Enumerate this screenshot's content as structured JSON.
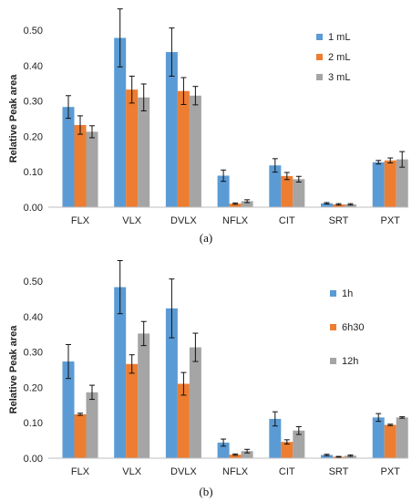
{
  "chart_data": [
    {
      "type": "bar",
      "panel_label": "(a)",
      "ylabel": "Relative Peak area",
      "ylim": [
        0,
        0.5
      ],
      "yticks": [
        "0.00",
        "0.10",
        "0.20",
        "0.30",
        "0.40",
        "0.50"
      ],
      "categories": [
        "FLX",
        "VLX",
        "DVLX",
        "NFLX",
        "CIT",
        "SRT",
        "PXT"
      ],
      "legend_position": "right",
      "series": [
        {
          "name": "1 mL",
          "color": "#5B9BD5",
          "values": [
            0.283,
            0.478,
            0.438,
            0.089,
            0.118,
            0.011,
            0.127
          ],
          "errors": [
            0.032,
            0.082,
            0.068,
            0.016,
            0.019,
            0.002,
            0.005
          ]
        },
        {
          "name": "2 mL",
          "color": "#ED7D31",
          "values": [
            0.232,
            0.332,
            0.328,
            0.01,
            0.088,
            0.008,
            0.132
          ],
          "errors": [
            0.026,
            0.038,
            0.038,
            0.002,
            0.01,
            0.002,
            0.007
          ]
        },
        {
          "name": "3 mL",
          "color": "#A5A5A5",
          "values": [
            0.213,
            0.31,
            0.315,
            0.017,
            0.079,
            0.008,
            0.135
          ],
          "errors": [
            0.017,
            0.038,
            0.026,
            0.004,
            0.008,
            0.002,
            0.022
          ]
        }
      ]
    },
    {
      "type": "bar",
      "panel_label": "(b)",
      "ylabel": "Relative Peak area",
      "ylim": [
        0,
        0.5
      ],
      "yticks": [
        "0.00",
        "0.10",
        "0.20",
        "0.30",
        "0.40",
        "0.50"
      ],
      "categories": [
        "FLX",
        "VLX",
        "DVLX",
        "NFLX",
        "CIT",
        "SRT",
        "PXT"
      ],
      "legend_position": "right",
      "series": [
        {
          "name": "1h",
          "color": "#5B9BD5",
          "values": [
            0.273,
            0.483,
            0.423,
            0.044,
            0.111,
            0.009,
            0.115
          ],
          "errors": [
            0.048,
            0.075,
            0.083,
            0.01,
            0.02,
            0.002,
            0.011
          ]
        },
        {
          "name": "6h30",
          "color": "#ED7D31",
          "values": [
            0.124,
            0.266,
            0.21,
            0.01,
            0.046,
            0.004,
            0.094
          ],
          "errors": [
            0.003,
            0.026,
            0.032,
            0.002,
            0.006,
            0.001,
            0.002
          ]
        },
        {
          "name": "12h",
          "color": "#A5A5A5",
          "values": [
            0.186,
            0.352,
            0.313,
            0.02,
            0.078,
            0.007,
            0.115
          ],
          "errors": [
            0.02,
            0.034,
            0.04,
            0.005,
            0.011,
            0.002,
            0.002
          ]
        }
      ]
    }
  ]
}
